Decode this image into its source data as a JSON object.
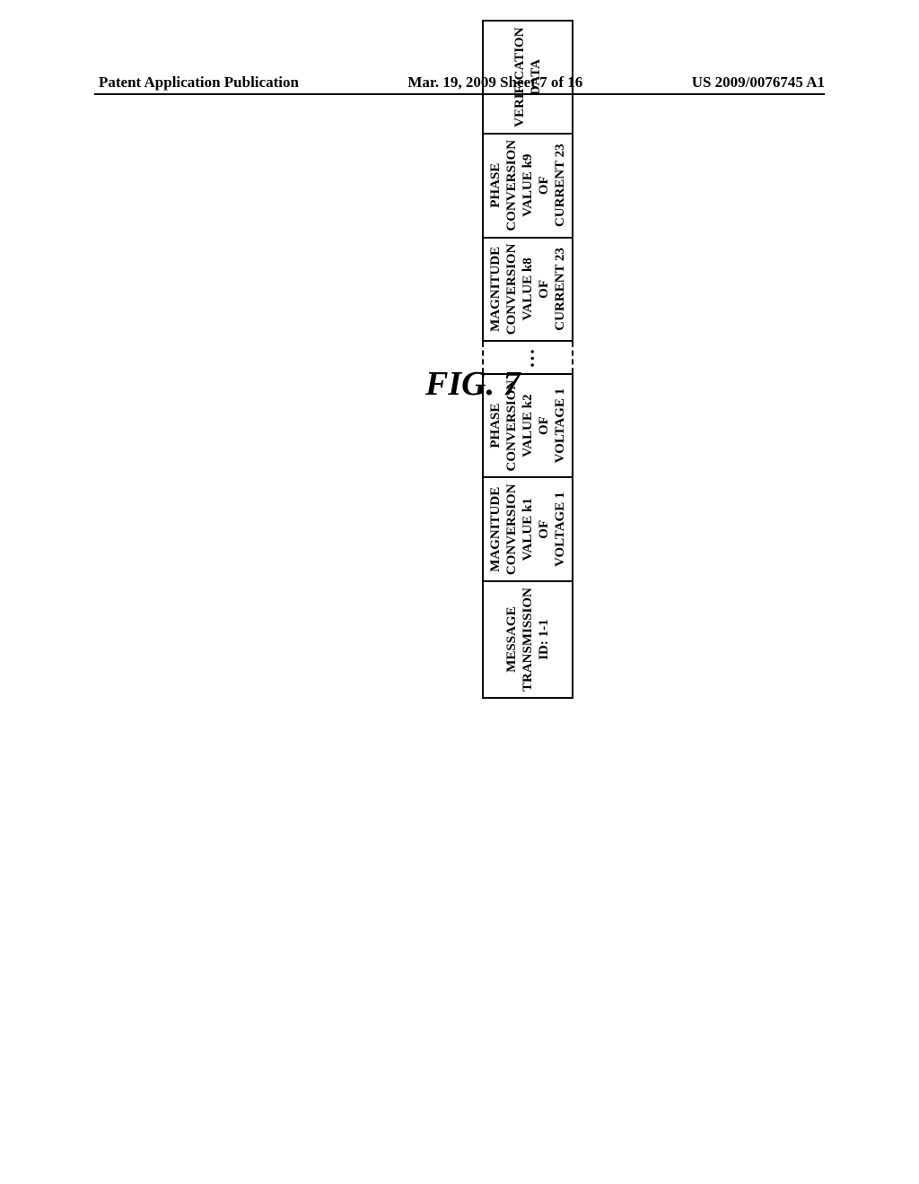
{
  "header": {
    "left": "Patent Application Publication",
    "center": "Mar. 19, 2009  Sheet 7 of 16",
    "right": "US 2009/0076745 A1"
  },
  "figure": {
    "label": "FIG. 7"
  },
  "table": {
    "cells": {
      "id": "MESSAGE\nTRANSMISSION\nID: 1-1",
      "c1": "MAGNITUDE\nCONVERSION\nVALUE k1\nOF\nVOLTAGE 1",
      "c2": "PHASE\nCONVERSION\nVALUE k2\nOF\nVOLTAGE 1",
      "ellipsis": "...",
      "c8": "MAGNITUDE\nCONVERSION\nVALUE k8\nOF\nCURRENT 23",
      "c9": "PHASE\nCONVERSION\nVALUE k9\nOF\nCURRENT 23",
      "verif": "VERIFICATION\nDATA"
    }
  },
  "style": {
    "background": "#ffffff",
    "text_color": "#000000",
    "border_color": "#000000",
    "table_border_width": 2.5,
    "header_font_size": 17,
    "figure_label_font_size": 38,
    "table_font_size": 15
  }
}
